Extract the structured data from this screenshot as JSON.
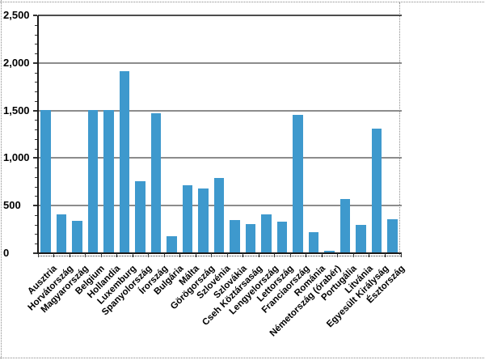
{
  "chart_data": {
    "type": "bar",
    "title": "",
    "xlabel": "",
    "ylabel": "",
    "categories": [
      "Ausztria",
      "Horvátország",
      "Magyarország",
      "Belgium",
      "Hollandia",
      "Luxemburg",
      "Spanyolország",
      "Írország",
      "Bulgária",
      "Málta",
      "Görögország",
      "Szlovénia",
      "Szlovákia",
      "Cseh Köztársaság",
      "Lengyelország",
      "Lettország",
      "Franciaország",
      "Románia",
      "Németország (órabér)",
      "Portugália",
      "Litvánia",
      "Egyesült Királyság",
      "Észtország"
    ],
    "values": [
      1500,
      400,
      330,
      1500,
      1500,
      1910,
      750,
      1460,
      170,
      710,
      670,
      780,
      340,
      300,
      400,
      320,
      1450,
      210,
      15,
      560,
      290,
      1300,
      350
    ],
    "ylim": [
      0,
      2500
    ],
    "ytick_interval": 500,
    "ytick_minor_interval": 100,
    "ytick_labels": [
      "0",
      "500",
      "1,000",
      "1,500",
      "2,000",
      "2,500"
    ],
    "grid": "horizontal",
    "legend_position": "none",
    "bar_color": "#3E99CD",
    "gridline_color": "#8c8c8c",
    "top_gridline_color": "#4d4d4d",
    "axis_color": "#1a1a1a",
    "tick_color": "#333333",
    "border_color": "#8a8a8a"
  }
}
